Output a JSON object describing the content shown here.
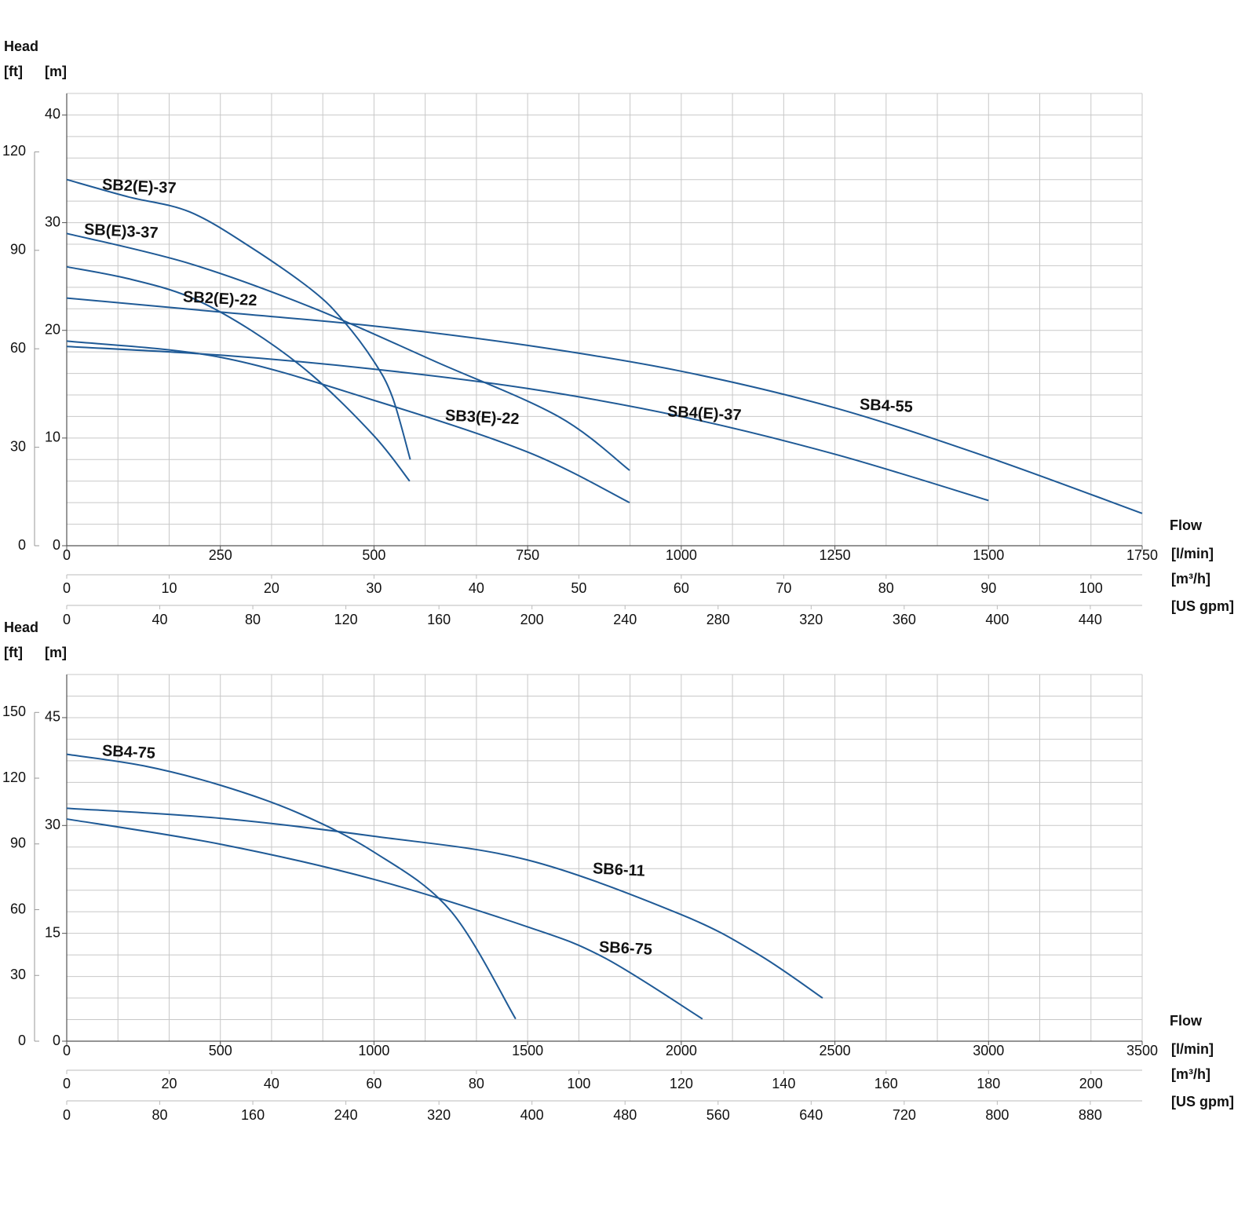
{
  "chart_data": [
    {
      "type": "line",
      "head_label": "Head",
      "ylabel": "[m]",
      "y2label": "[ft]",
      "flow_label": "Flow",
      "xlabel": "[l/min]",
      "x2label": "[m³/h]",
      "x3label": "[US gpm]",
      "xlim": [
        0,
        1750
      ],
      "xticks": [
        0,
        250,
        500,
        750,
        1000,
        1250,
        1500,
        1750
      ],
      "x2lim": [
        0,
        105
      ],
      "x2ticks": [
        0,
        10,
        20,
        30,
        40,
        50,
        60,
        70,
        80,
        90,
        100
      ],
      "x3lim": [
        0,
        462.3
      ],
      "x3ticks": [
        0,
        40,
        80,
        120,
        160,
        200,
        240,
        280,
        320,
        360,
        400,
        440
      ],
      "ylim": [
        0,
        42
      ],
      "yticks": [
        0,
        10,
        20,
        30,
        40
      ],
      "y2lim": [
        0,
        137.8
      ],
      "y2ticks": [
        0,
        30,
        60,
        90,
        120
      ],
      "grid": true,
      "series": [
        {
          "name": "SB2(E)-37",
          "color": "#1f5a96",
          "x": [
            0,
            100,
            200,
            300,
            400,
            450,
            500,
            530,
            559
          ],
          "values": [
            34.0,
            32.4,
            31.0,
            27.7,
            23.7,
            20.9,
            17.1,
            13.8,
            8.0
          ]
        },
        {
          "name": "SB(E)3-37",
          "color": "#1f5a96",
          "x": [
            0,
            200,
            400,
            600,
            800,
            916
          ],
          "values": [
            29.0,
            26.2,
            22.1,
            17.1,
            12.0,
            7.0
          ]
        },
        {
          "name": "SB2(E)-22",
          "color": "#1f5a96",
          "x": [
            0,
            100,
            200,
            300,
            400,
            500,
            558
          ],
          "values": [
            25.9,
            24.8,
            23.1,
            20.0,
            15.8,
            10.2,
            6.0
          ]
        },
        {
          "name": "SB4-55",
          "color": "#1f5a96",
          "x": [
            0,
            250,
            500,
            750,
            1000,
            1250,
            1500,
            1750
          ],
          "values": [
            23.0,
            21.7,
            20.4,
            18.6,
            16.2,
            12.8,
            8.2,
            3.0
          ]
        },
        {
          "name": "SB3(E)-22",
          "color": "#1f5a96",
          "x": [
            0,
            250,
            500,
            750,
            916
          ],
          "values": [
            19.0,
            17.5,
            13.5,
            8.7,
            4.0
          ]
        },
        {
          "name": "SB4(E)-37",
          "color": "#1f5a96",
          "x": [
            0,
            250,
            500,
            750,
            1000,
            1250,
            1500
          ],
          "values": [
            18.5,
            17.7,
            16.4,
            14.6,
            12.0,
            8.5,
            4.2
          ]
        }
      ]
    },
    {
      "type": "line",
      "head_label": "Head",
      "ylabel": "[m]",
      "y2label": "[ft]",
      "flow_label": "Flow",
      "xlabel": "[l/min]",
      "x2label": "[m³/h]",
      "x3label": "[US gpm]",
      "xlim": [
        0,
        3500
      ],
      "xticks": [
        0,
        500,
        1000,
        1500,
        2000,
        2500,
        3000,
        3500
      ],
      "x2lim": [
        0,
        210
      ],
      "x2ticks": [
        0,
        20,
        40,
        60,
        80,
        100,
        120,
        140,
        160,
        180,
        200
      ],
      "x3lim": [
        0,
        924.6
      ],
      "x3ticks": [
        0,
        80,
        160,
        240,
        320,
        400,
        480,
        560,
        640,
        720,
        800,
        880
      ],
      "ylim": [
        0,
        51
      ],
      "yticks": [
        0,
        15,
        30,
        45
      ],
      "y2lim": [
        0,
        167.3
      ],
      "y2ticks": [
        0,
        30,
        60,
        90,
        120,
        150
      ],
      "grid": true,
      "series": [
        {
          "name": "SB4-75",
          "color": "#1f5a96",
          "x": [
            0,
            250,
            500,
            750,
            1000,
            1250,
            1461
          ],
          "values": [
            39.9,
            38.3,
            35.6,
            31.8,
            26.3,
            18.1,
            3.1
          ]
        },
        {
          "name": "SB6-11",
          "color": "#1f5a96",
          "x": [
            0,
            500,
            1000,
            1500,
            2000,
            2250,
            2460
          ],
          "values": [
            32.4,
            31.0,
            28.5,
            25.2,
            17.6,
            12.1,
            6.0
          ]
        },
        {
          "name": "SB6-75",
          "color": "#1f5a96",
          "x": [
            0,
            500,
            1000,
            1500,
            1750,
            2069
          ],
          "values": [
            30.9,
            27.4,
            22.5,
            15.9,
            11.6,
            3.1
          ]
        }
      ]
    }
  ]
}
